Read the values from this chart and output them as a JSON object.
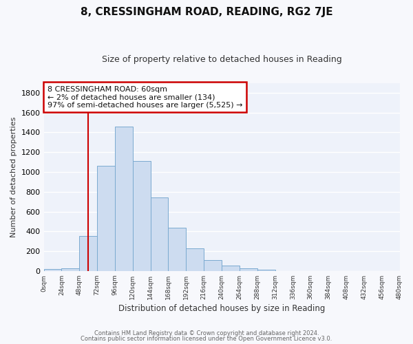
{
  "title": "8, CRESSINGHAM ROAD, READING, RG2 7JE",
  "subtitle": "Size of property relative to detached houses in Reading",
  "xlabel": "Distribution of detached houses by size in Reading",
  "ylabel": "Number of detached properties",
  "bar_color": "#cddcf0",
  "bar_edge_color": "#7aaad0",
  "plot_bg_color": "#eef2fa",
  "fig_bg_color": "#f7f8fc",
  "grid_color": "#ffffff",
  "bin_edges": [
    0,
    24,
    48,
    72,
    96,
    120,
    144,
    168,
    192,
    216,
    240,
    264,
    288,
    312,
    336,
    360,
    384,
    408,
    432,
    456,
    480
  ],
  "bar_heights": [
    20,
    30,
    355,
    1065,
    1460,
    1110,
    740,
    440,
    230,
    110,
    55,
    30,
    15,
    0,
    0,
    0,
    0,
    0,
    0,
    0
  ],
  "vline_x": 60,
  "vline_color": "#cc0000",
  "annotation_title": "8 CRESSINGHAM ROAD: 60sqm",
  "annotation_line1": "← 2% of detached houses are smaller (134)",
  "annotation_line2": "97% of semi-detached houses are larger (5,525) →",
  "annotation_box_facecolor": "#ffffff",
  "annotation_box_edgecolor": "#cc0000",
  "ylim": [
    0,
    1900
  ],
  "yticks": [
    0,
    200,
    400,
    600,
    800,
    1000,
    1200,
    1400,
    1600,
    1800
  ],
  "xtick_labels": [
    "0sqm",
    "24sqm",
    "48sqm",
    "72sqm",
    "96sqm",
    "120sqm",
    "144sqm",
    "168sqm",
    "192sqm",
    "216sqm",
    "240sqm",
    "264sqm",
    "288sqm",
    "312sqm",
    "336sqm",
    "360sqm",
    "384sqm",
    "408sqm",
    "432sqm",
    "456sqm",
    "480sqm"
  ],
  "footer_line1": "Contains HM Land Registry data © Crown copyright and database right 2024.",
  "footer_line2": "Contains public sector information licensed under the Open Government Licence v3.0."
}
